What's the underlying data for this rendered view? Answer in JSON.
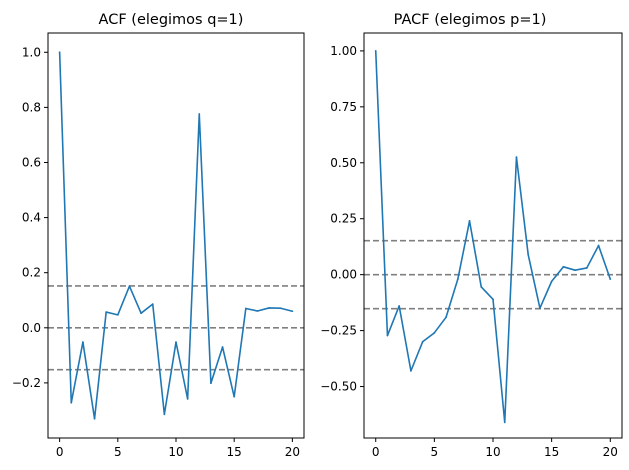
{
  "chart_data": [
    {
      "type": "line",
      "title": "ACF (elegimos q=1)",
      "xlabel": "",
      "ylabel": "",
      "xlim": [
        -1,
        21
      ],
      "ylim": [
        -0.4,
        1.07
      ],
      "x_ticks": [
        0,
        5,
        10,
        15,
        20
      ],
      "x_tick_labels": [
        "0",
        "5",
        "10",
        "15",
        "20"
      ],
      "y_ticks": [
        -0.2,
        0.0,
        0.2,
        0.4,
        0.6,
        0.8,
        1.0
      ],
      "y_tick_labels": [
        "−0.2",
        "0.0",
        "0.2",
        "0.4",
        "0.6",
        "0.8",
        "1.0"
      ],
      "x": [
        0,
        1,
        2,
        3,
        4,
        5,
        6,
        7,
        8,
        9,
        10,
        11,
        12,
        13,
        14,
        15,
        16,
        17,
        18,
        19,
        20
      ],
      "values": [
        1.0,
        -0.272,
        -0.052,
        -0.33,
        0.057,
        0.047,
        0.151,
        0.053,
        0.086,
        -0.314,
        -0.052,
        -0.258,
        0.776,
        -0.201,
        -0.07,
        -0.25,
        0.07,
        0.061,
        0.072,
        0.071,
        0.06
      ],
      "reference_lines": [
        0.152,
        0.0,
        -0.152
      ],
      "color": "#1f77b4",
      "reference_color": "#808080"
    },
    {
      "type": "line",
      "title": "PACF (elegimos p=1)",
      "xlabel": "",
      "ylabel": "",
      "xlim": [
        -1,
        21
      ],
      "ylim": [
        -0.73,
        1.08
      ],
      "x_ticks": [
        0,
        5,
        10,
        15,
        20
      ],
      "x_tick_labels": [
        "0",
        "5",
        "10",
        "15",
        "20"
      ],
      "y_ticks": [
        -0.5,
        -0.25,
        0.0,
        0.25,
        0.5,
        0.75,
        1.0
      ],
      "y_tick_labels": [
        "−0.50",
        "−0.25",
        "0.00",
        "0.25",
        "0.50",
        "0.75",
        "1.00"
      ],
      "x": [
        0,
        1,
        2,
        3,
        4,
        5,
        6,
        7,
        8,
        9,
        10,
        11,
        12,
        13,
        14,
        15,
        16,
        17,
        18,
        19,
        20
      ],
      "values": [
        1.0,
        -0.272,
        -0.14,
        -0.43,
        -0.3,
        -0.26,
        -0.19,
        -0.02,
        0.24,
        -0.055,
        -0.11,
        -0.66,
        0.525,
        0.09,
        -0.15,
        -0.03,
        0.035,
        0.02,
        0.03,
        0.13,
        -0.02
      ],
      "reference_lines": [
        0.152,
        0.0,
        -0.152
      ],
      "color": "#1f77b4",
      "reference_color": "#808080"
    }
  ]
}
